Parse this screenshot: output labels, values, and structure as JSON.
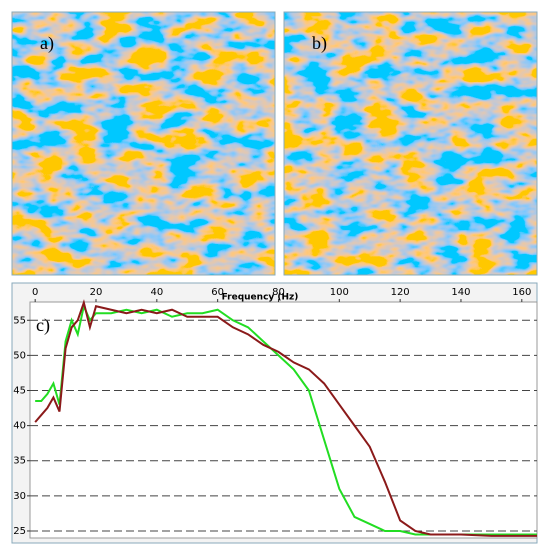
{
  "panels": {
    "a": "a)",
    "b": "b)"
  },
  "chart_data": {
    "type": "line",
    "panel_label": "c)",
    "xlabel": "Frequency (Hz)",
    "x": [
      0,
      2,
      4,
      6,
      8,
      10,
      12,
      14,
      16,
      18,
      20,
      25,
      30,
      35,
      40,
      45,
      50,
      55,
      60,
      65,
      70,
      75,
      80,
      85,
      90,
      95,
      100,
      105,
      110,
      115,
      120,
      125,
      130,
      135,
      140,
      150,
      160,
      165
    ],
    "series": [
      {
        "color": "#22dd22",
        "values": [
          43.5,
          43.5,
          44.5,
          46,
          43,
          52,
          55,
          53,
          57,
          55,
          56,
          56,
          56.5,
          56,
          56.5,
          55.5,
          56,
          56,
          56.5,
          55,
          54,
          52,
          50,
          48,
          45,
          38,
          31,
          27,
          26,
          25,
          25,
          24.5,
          24.5,
          24.5,
          24.5,
          24.5,
          24.5,
          24.5
        ]
      },
      {
        "color": "#8b1a1a",
        "values": [
          40.5,
          41.5,
          42.5,
          44,
          42,
          51,
          54,
          55,
          57.5,
          54,
          57,
          56.5,
          56,
          56.5,
          56,
          56.5,
          55.5,
          55.5,
          55.5,
          54,
          53,
          51.5,
          50.5,
          49,
          48,
          46,
          43,
          40,
          37,
          32,
          26.5,
          25,
          24.5,
          24.5,
          24.5,
          24.3,
          24.3,
          24.3
        ]
      }
    ],
    "xlim": [
      -1.7,
      165
    ],
    "xticks": [
      0,
      20,
      40,
      60,
      80,
      100,
      120,
      140,
      160
    ],
    "ylim": [
      24,
      57.6
    ],
    "yticks": [
      25,
      30,
      35,
      40,
      45,
      50,
      55
    ],
    "grid": true
  }
}
